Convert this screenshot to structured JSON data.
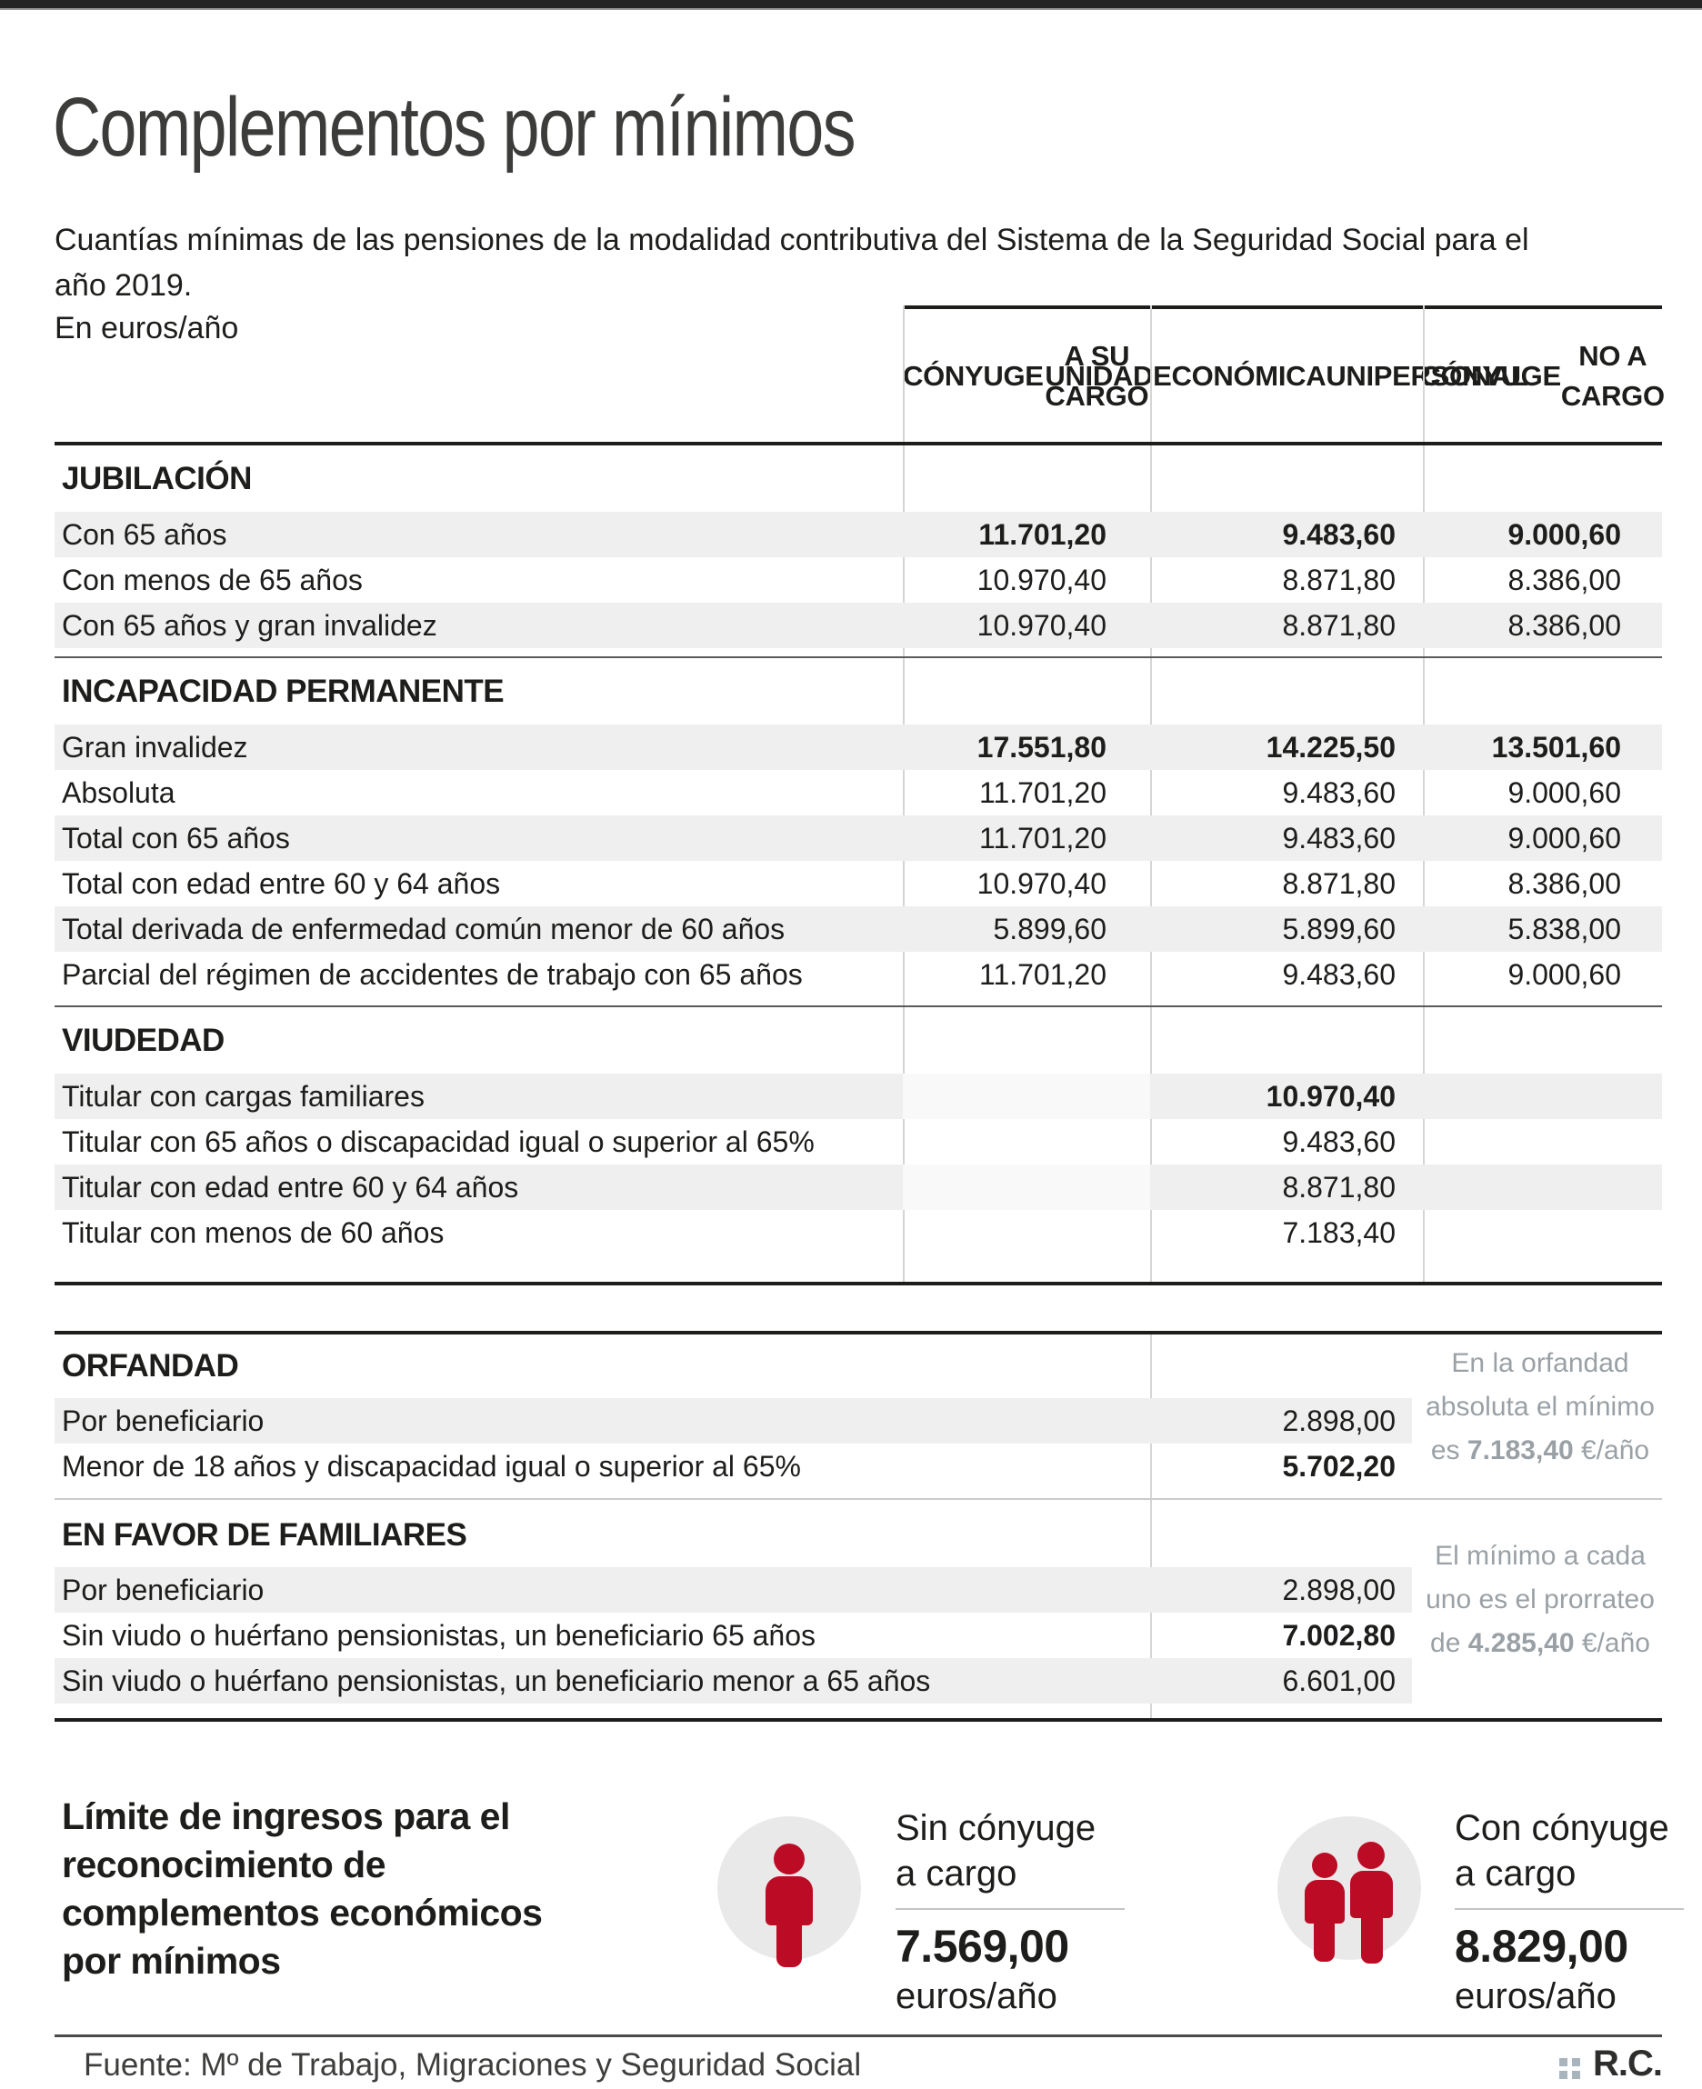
{
  "chart_data": {
    "type": "table",
    "title": "Complementos por mínimos",
    "subtitle": "Cuantías mínimas de las pensiones de la modalidad contributiva del Sistema de la Seguridad Social para el año 2019.",
    "unit": "En euros/año",
    "columns": [
      {
        "lines": [
          "CÓNYUGE",
          "A SU CARGO"
        ]
      },
      {
        "lines": [
          "UNIDAD",
          "ECONÓMICA",
          "UNIPERSONAL"
        ]
      },
      {
        "lines": [
          "CÓNYUGE",
          "NO A CARGO"
        ]
      }
    ],
    "sections": [
      {
        "name": "JUBILACIÓN",
        "rows": [
          {
            "label": "Con 65 años",
            "values": [
              "11.701,20",
              "9.483,60",
              "9.000,60"
            ],
            "bold": true
          },
          {
            "label": "Con menos de 65 años",
            "values": [
              "10.970,40",
              "8.871,80",
              "8.386,00"
            ],
            "bold": false
          },
          {
            "label": "Con 65 años y gran invalidez",
            "values": [
              "10.970,40",
              "8.871,80",
              "8.386,00"
            ],
            "bold": false
          }
        ]
      },
      {
        "name": "INCAPACIDAD PERMANENTE",
        "rows": [
          {
            "label": "Gran invalidez",
            "values": [
              "17.551,80",
              "14.225,50",
              "13.501,60"
            ],
            "bold": true
          },
          {
            "label": "Absoluta",
            "values": [
              "11.701,20",
              "9.483,60",
              "9.000,60"
            ],
            "bold": false
          },
          {
            "label": "Total con 65 años",
            "values": [
              "11.701,20",
              "9.483,60",
              "9.000,60"
            ],
            "bold": false
          },
          {
            "label": "Total con edad entre 60 y 64 años",
            "values": [
              "10.970,40",
              "8.871,80",
              "8.386,00"
            ],
            "bold": false
          },
          {
            "label": "Total derivada de enfermedad común menor de 60 años",
            "values": [
              "5.899,60",
              "5.899,60",
              "5.838,00"
            ],
            "bold": false
          },
          {
            "label": "Parcial del régimen de accidentes de trabajo con 65 años",
            "values": [
              "11.701,20",
              "9.483,60",
              "9.000,60"
            ],
            "bold": false
          }
        ]
      },
      {
        "name": "VIUDEDAD",
        "rows": [
          {
            "label": "Titular con cargas familiares",
            "values": [
              "",
              "10.970,40",
              ""
            ],
            "bold": true
          },
          {
            "label": "Titular con 65 años o discapacidad igual o superior al 65%",
            "values": [
              "",
              "9.483,60",
              ""
            ],
            "bold": false
          },
          {
            "label": "Titular con edad entre 60 y 64 años",
            "values": [
              "",
              "8.871,80",
              ""
            ],
            "bold": false
          },
          {
            "label": "Titular con menos de 60 años",
            "values": [
              "",
              "7.183,40",
              ""
            ],
            "bold": false
          }
        ]
      }
    ],
    "extra_sections": [
      {
        "name": "ORFANDAD",
        "rows": [
          {
            "label": "Por beneficiario",
            "value": "2.898,00",
            "bold": false
          },
          {
            "label": "Menor de 18 años y discapacidad igual o superior al 65%",
            "value": "5.702,20",
            "bold": true
          }
        ],
        "note": {
          "line1": "En la orfandad",
          "line2": "absoluta el mínimo",
          "line3_pre": "es ",
          "amount": "7.183,40",
          "line3_post": " €/año"
        }
      },
      {
        "name": "EN FAVOR DE FAMILIARES",
        "rows": [
          {
            "label": "Por beneficiario",
            "value": "2.898,00",
            "bold": false
          },
          {
            "label": "Sin viudo o huérfano pensionistas, un beneficiario 65 años",
            "value": "7.002,80",
            "bold": true
          },
          {
            "label": "Sin viudo o huérfano pensionistas, un beneficiario  menor a 65 años",
            "value": "6.601,00",
            "bold": false
          }
        ],
        "note": {
          "line1": "El mínimo a cada",
          "line2": "uno es el prorrateo",
          "line3_pre": "de ",
          "amount": "4.285,40",
          "line3_post": " €/año"
        }
      }
    ],
    "limits": {
      "heading": "Límite de ingresos para el reconocimiento de complementos económicos por mínimos",
      "items": [
        {
          "icon": "single-person-icon",
          "label": "Sin cónyuge a cargo",
          "amount": "7.569,00",
          "unit": "euros/año"
        },
        {
          "icon": "couple-icon",
          "label": "Con cónyuge a cargo",
          "amount": "8.829,00",
          "unit": "euros/año"
        }
      ]
    },
    "footer": {
      "source": "Fuente: Mº de Trabajo, Migraciones y Seguridad Social",
      "credit": "R.C."
    },
    "colors": {
      "accent_red": "#bc0b25",
      "stripe": "#efefef",
      "note_gray": "#9aa1a6",
      "rule_black": "#1d1d1b"
    }
  }
}
